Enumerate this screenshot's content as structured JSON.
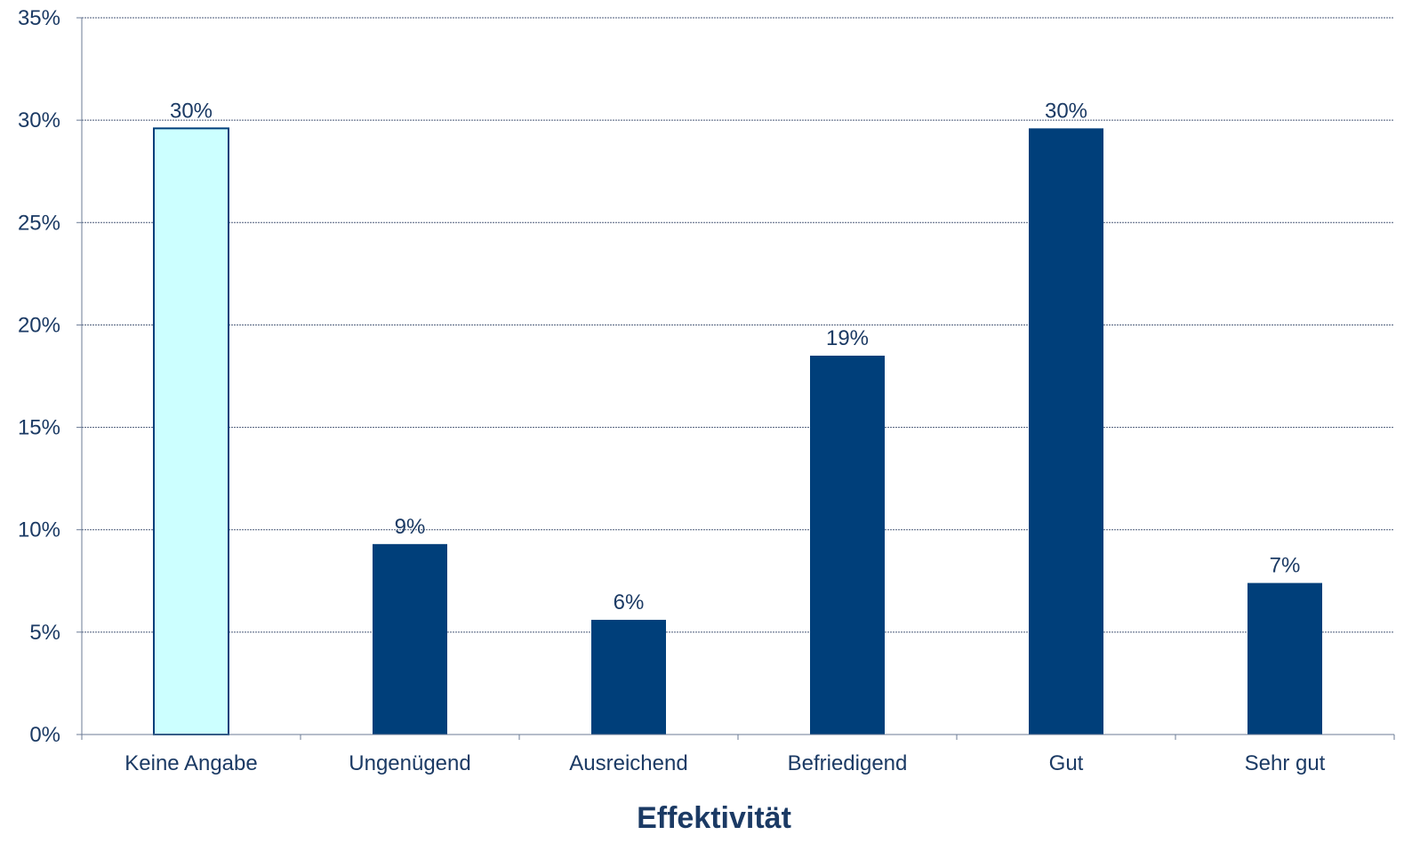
{
  "chart_data": {
    "type": "bar",
    "title": "",
    "xlabel": "Effektivität",
    "ylabel": "",
    "categories": [
      "Keine Angabe",
      "Ungenügend",
      "Ausreichend",
      "Befriedigend",
      "Gut",
      "Sehr gut"
    ],
    "values": [
      29.6,
      9.3,
      5.6,
      18.5,
      29.6,
      7.4
    ],
    "value_labels": [
      "30%",
      "9%",
      "6%",
      "19%",
      "30%",
      "7%"
    ],
    "ylim": [
      0,
      35
    ],
    "yticks": [
      0,
      5,
      10,
      15,
      20,
      25,
      30,
      35
    ],
    "ytick_labels": [
      "0%",
      "5%",
      "10%",
      "15%",
      "20%",
      "25%",
      "30%",
      "35%"
    ],
    "grid": true,
    "legend": "none",
    "colors": {
      "bar_fill": "#003f7a",
      "highlight_fill": "#ccffff",
      "highlight_stroke": "#003f7a",
      "highlight_index": 0,
      "text": "#1b3a64",
      "grid": "#4a5a78",
      "axis": "#6b7b95"
    }
  }
}
